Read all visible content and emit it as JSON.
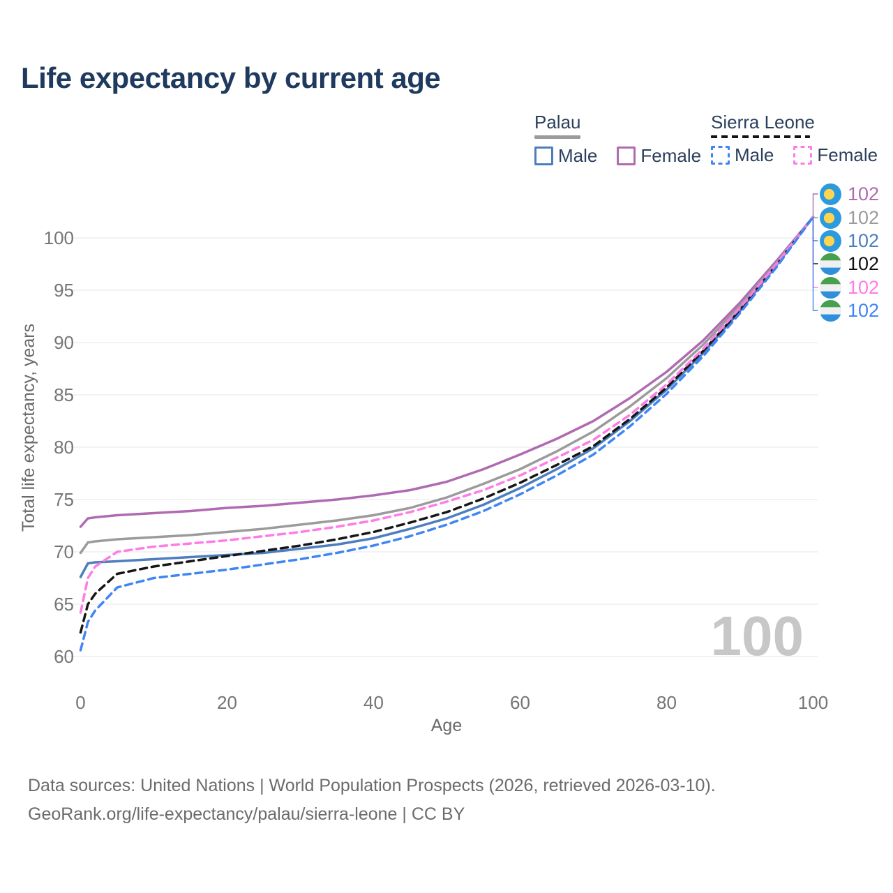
{
  "title": "Life expectancy by current age",
  "legend": {
    "palau": {
      "title": "Palau",
      "male": "Male",
      "female": "Female"
    },
    "sierra_leone": {
      "title": "Sierra Leone",
      "male": "Male",
      "female": "Female"
    }
  },
  "watermark": {
    "current_age": "100"
  },
  "footer": {
    "line1": "Data sources: United Nations | World Population Prospects (2026, retrieved 2026-03-10).",
    "line2": "GeoRank.org/life-expectancy/palau/sierra-leone | CC BY"
  },
  "colors": {
    "title_text": "#1e3a5f",
    "legend_text": "#2b3f5c",
    "palau_underline": "#9b9b9b",
    "sierra_leone_underline": "#141414",
    "gridline": "#ececec",
    "tick_text": "#757575",
    "axis_title_text": "#6a6a6a",
    "watermark_text": "#c7c7c7",
    "footer_text": "#6b6b6b",
    "palau_flag_blue": "#2b9ade",
    "palau_flag_yellow": "#ffd44f",
    "sierra_leone_flag_green": "#47a04e",
    "sierra_leone_flag_white": "#f0f0f0",
    "sierra_leone_flag_blue": "#2f8fdd"
  },
  "chart_data": {
    "type": "line",
    "title": "Life expectancy by current age",
    "xlabel": "Age",
    "ylabel": "Total life expectancy, years",
    "xlim": [
      0,
      100
    ],
    "ylim": [
      60,
      102
    ],
    "x_ticks": [
      0,
      20,
      40,
      60,
      80,
      100
    ],
    "y_ticks": [
      60,
      65,
      70,
      75,
      80,
      85,
      90,
      95,
      100
    ],
    "grid": "horizontal",
    "legend_position": "top-right",
    "x": [
      0,
      1,
      2,
      5,
      10,
      15,
      20,
      25,
      30,
      35,
      40,
      45,
      50,
      55,
      60,
      65,
      70,
      75,
      80,
      85,
      90,
      95,
      100
    ],
    "series": [
      {
        "name": "Palau Female",
        "country": "Palau",
        "sex": "Female",
        "style": "solid",
        "color": "#b06ab2",
        "end_label": "102",
        "flag": "palau",
        "values": [
          72.4,
          73.2,
          73.3,
          73.5,
          73.7,
          73.9,
          74.2,
          74.4,
          74.7,
          75.0,
          75.4,
          75.9,
          76.7,
          77.9,
          79.3,
          80.8,
          82.5,
          84.7,
          87.2,
          90.2,
          93.8,
          97.8,
          102.0
        ]
      },
      {
        "name": "Palau Both sexes",
        "country": "Palau",
        "sex": "Both",
        "style": "solid",
        "color": "#9b9b9b",
        "end_label": "102",
        "flag": "palau",
        "values": [
          69.9,
          70.9,
          71.0,
          71.2,
          71.4,
          71.6,
          71.9,
          72.2,
          72.6,
          73.0,
          73.5,
          74.2,
          75.2,
          76.5,
          77.9,
          79.6,
          81.5,
          83.9,
          86.6,
          89.8,
          93.5,
          97.6,
          102.0
        ]
      },
      {
        "name": "Palau Male",
        "country": "Palau",
        "sex": "Male",
        "style": "solid",
        "color": "#4d7ebe",
        "end_label": "102",
        "flag": "palau",
        "values": [
          67.6,
          68.9,
          69.0,
          69.1,
          69.3,
          69.5,
          69.7,
          69.9,
          70.3,
          70.7,
          71.3,
          72.2,
          73.2,
          74.5,
          76.1,
          77.9,
          79.9,
          82.5,
          85.5,
          89.0,
          93.0,
          97.4,
          102.0
        ]
      },
      {
        "name": "Sierra Leone Both sexes",
        "country": "Sierra Leone",
        "sex": "Both",
        "style": "dashed",
        "color": "#161616",
        "end_label": "102",
        "flag": "sierra-leone",
        "values": [
          62.3,
          65.0,
          66.0,
          67.9,
          68.6,
          69.1,
          69.6,
          70.1,
          70.6,
          71.2,
          71.9,
          72.8,
          73.8,
          75.1,
          76.6,
          78.3,
          80.1,
          82.7,
          85.7,
          89.2,
          93.1,
          97.4,
          102.0
        ]
      },
      {
        "name": "Sierra Leone Female",
        "country": "Sierra Leone",
        "sex": "Female",
        "style": "dashed",
        "color": "#ff7ce6",
        "end_label": "102",
        "flag": "sierra-leone",
        "values": [
          64.2,
          67.5,
          68.6,
          70.0,
          70.5,
          70.8,
          71.1,
          71.5,
          71.9,
          72.4,
          73.0,
          73.8,
          74.8,
          75.9,
          77.3,
          79.0,
          80.7,
          83.1,
          86.0,
          89.4,
          93.3,
          97.5,
          102.0
        ]
      },
      {
        "name": "Sierra Leone Male",
        "country": "Sierra Leone",
        "sex": "Male",
        "style": "dashed",
        "color": "#3f86f4",
        "end_label": "102",
        "flag": "sierra-leone",
        "values": [
          60.6,
          63.3,
          64.4,
          66.6,
          67.5,
          67.9,
          68.3,
          68.8,
          69.3,
          69.9,
          70.6,
          71.5,
          72.6,
          73.9,
          75.5,
          77.3,
          79.3,
          82.0,
          85.1,
          88.7,
          92.8,
          97.2,
          102.0
        ]
      }
    ]
  }
}
